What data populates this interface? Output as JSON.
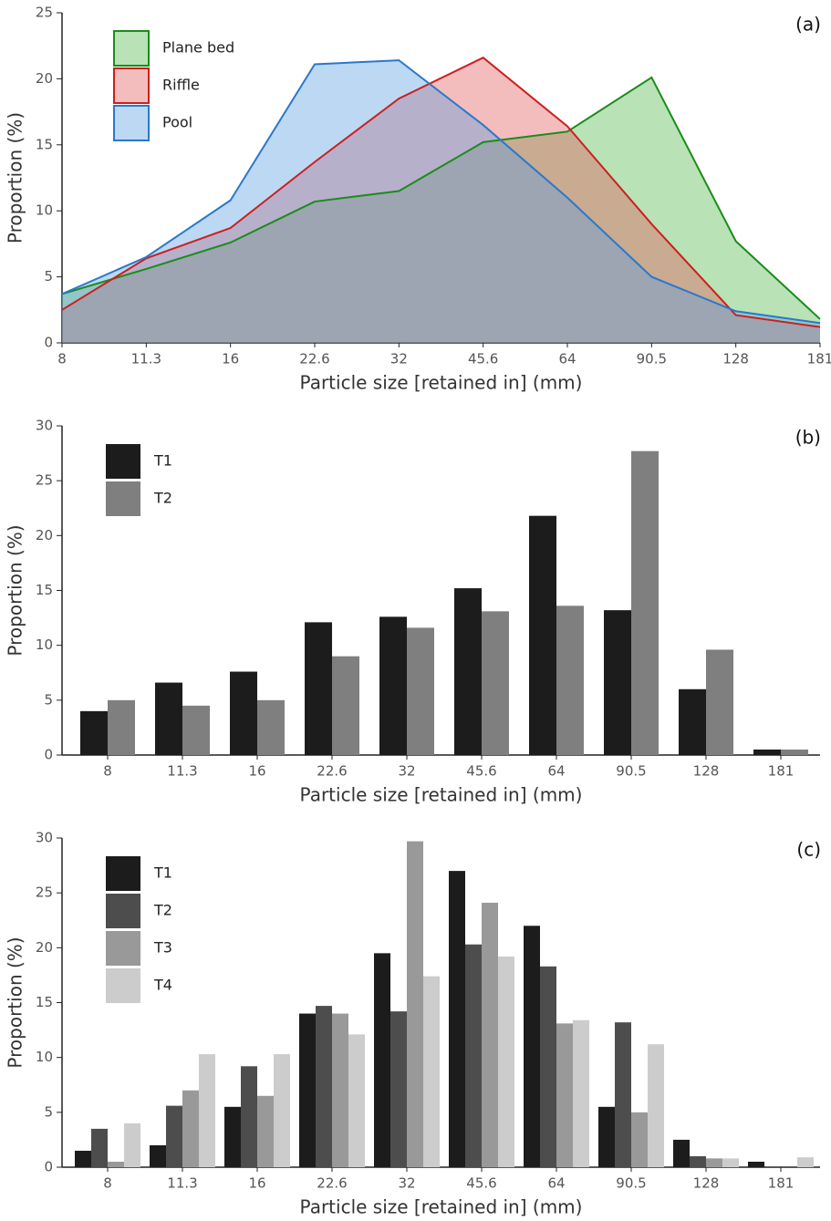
{
  "chart_data": [
    {
      "type": "area",
      "title": "(a)",
      "x_label": "Particle size [retained in] (mm)",
      "y_label": "Proportion (%)",
      "categories": [
        "8",
        "11.3",
        "16",
        "22.6",
        "32",
        "45.6",
        "64",
        "90.5",
        "128",
        "181"
      ],
      "series": [
        {
          "name": "Plane bed",
          "color": "#1a8c1a",
          "fill": "#4fb64a",
          "values": [
            3.7,
            5.6,
            7.6,
            10.7,
            11.5,
            15.2,
            16.0,
            20.1,
            7.7,
            1.8
          ]
        },
        {
          "name": "Riffle",
          "color": "#cc1f1f",
          "fill": "#e05a5a",
          "values": [
            2.5,
            6.4,
            8.7,
            13.7,
            18.5,
            21.6,
            16.4,
            9.0,
            2.1,
            1.2
          ]
        },
        {
          "name": "Pool",
          "color": "#2a78cc",
          "fill": "#5b9de0",
          "values": [
            3.7,
            6.5,
            10.8,
            21.1,
            21.4,
            16.5,
            11.0,
            5.0,
            2.4,
            1.5
          ]
        }
      ],
      "ylim": [
        0,
        25
      ],
      "yticks": [
        0,
        5,
        10,
        15,
        20,
        25
      ],
      "legend": "upper left"
    },
    {
      "type": "bar",
      "title": "(b)",
      "x_label": "Particle size [retained in] (mm)",
      "y_label": "Proportion (%)",
      "categories": [
        "8",
        "11.3",
        "16",
        "22.6",
        "32",
        "45.6",
        "64",
        "90.5",
        "128",
        "181"
      ],
      "series": [
        {
          "name": "T1",
          "color": "#1c1c1c",
          "values": [
            4.0,
            6.6,
            7.6,
            12.1,
            12.6,
            15.2,
            21.8,
            13.2,
            6.0,
            0.5
          ]
        },
        {
          "name": "T2",
          "color": "#7f7f7f",
          "values": [
            5.0,
            4.5,
            5.0,
            9.0,
            11.6,
            13.1,
            13.6,
            27.7,
            9.6,
            0.5
          ]
        }
      ],
      "ylim": [
        0,
        30
      ],
      "yticks": [
        0,
        5,
        10,
        15,
        20,
        25,
        30
      ],
      "legend": "upper left"
    },
    {
      "type": "bar",
      "title": "(c)",
      "x_label": "Particle size [retained in] (mm)",
      "y_label": "Proportion (%)",
      "categories": [
        "8",
        "11.3",
        "16",
        "22.6",
        "32",
        "45.6",
        "64",
        "90.5",
        "128",
        "181"
      ],
      "series": [
        {
          "name": "T1",
          "color": "#1c1c1c",
          "values": [
            1.5,
            2.0,
            5.5,
            14.0,
            19.5,
            27.0,
            22.0,
            5.5,
            2.5,
            0.5
          ]
        },
        {
          "name": "T2",
          "color": "#4d4d4d",
          "values": [
            3.5,
            5.6,
            9.2,
            14.7,
            14.2,
            20.3,
            18.3,
            13.2,
            1.0,
            0
          ]
        },
        {
          "name": "T3",
          "color": "#999999",
          "values": [
            0.5,
            7.0,
            6.5,
            14.0,
            29.7,
            24.1,
            13.1,
            5.0,
            0.8,
            0
          ]
        },
        {
          "name": "T4",
          "color": "#cccccc",
          "values": [
            4.0,
            10.3,
            10.3,
            12.1,
            17.4,
            19.2,
            13.4,
            11.2,
            0.8,
            0.9
          ]
        }
      ],
      "ylim": [
        0,
        30
      ],
      "yticks": [
        0,
        5,
        10,
        15,
        20,
        25,
        30
      ],
      "legend": "upper left"
    }
  ]
}
